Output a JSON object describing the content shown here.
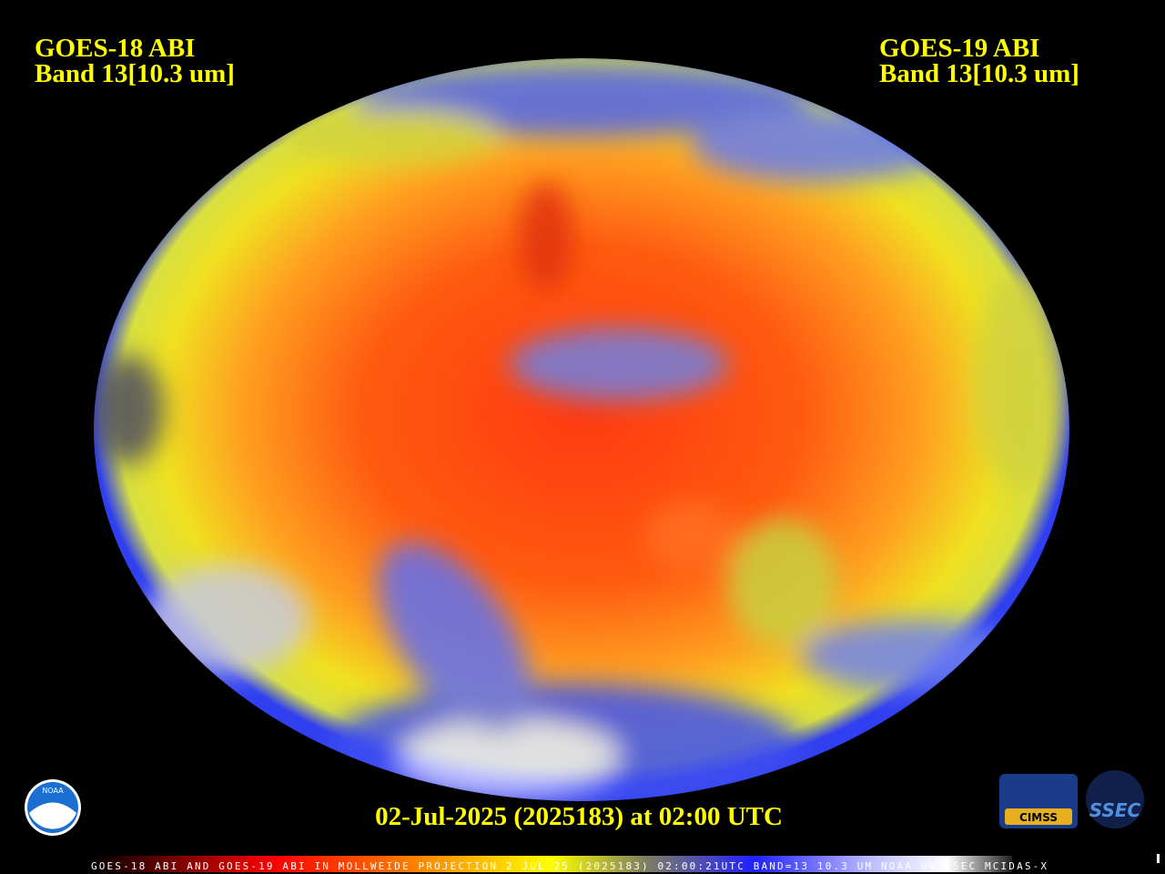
{
  "header": {
    "left": {
      "lines": [
        "GOES-18 ABI",
        "Band 13[10.3 um]"
      ]
    },
    "right": {
      "lines": [
        "GOES-19 ABI",
        "Band 13[10.3 um]"
      ]
    }
  },
  "footer": {
    "date": "02-Jul-2025 (2025183) at 02:00 UTC",
    "banner": "GOES-18 ABI AND GOES-19 ABI IN MOLLWEIDE PROJECTION 2 JUL 25 (2025183) 02:00:21UTC BAND=13 10.3 UM NOAA UW-SSEC MCIDAS-X"
  },
  "logos": {
    "noaa": "NOAA",
    "cimss": "CIMSS",
    "ssec": "SSEC"
  }
}
